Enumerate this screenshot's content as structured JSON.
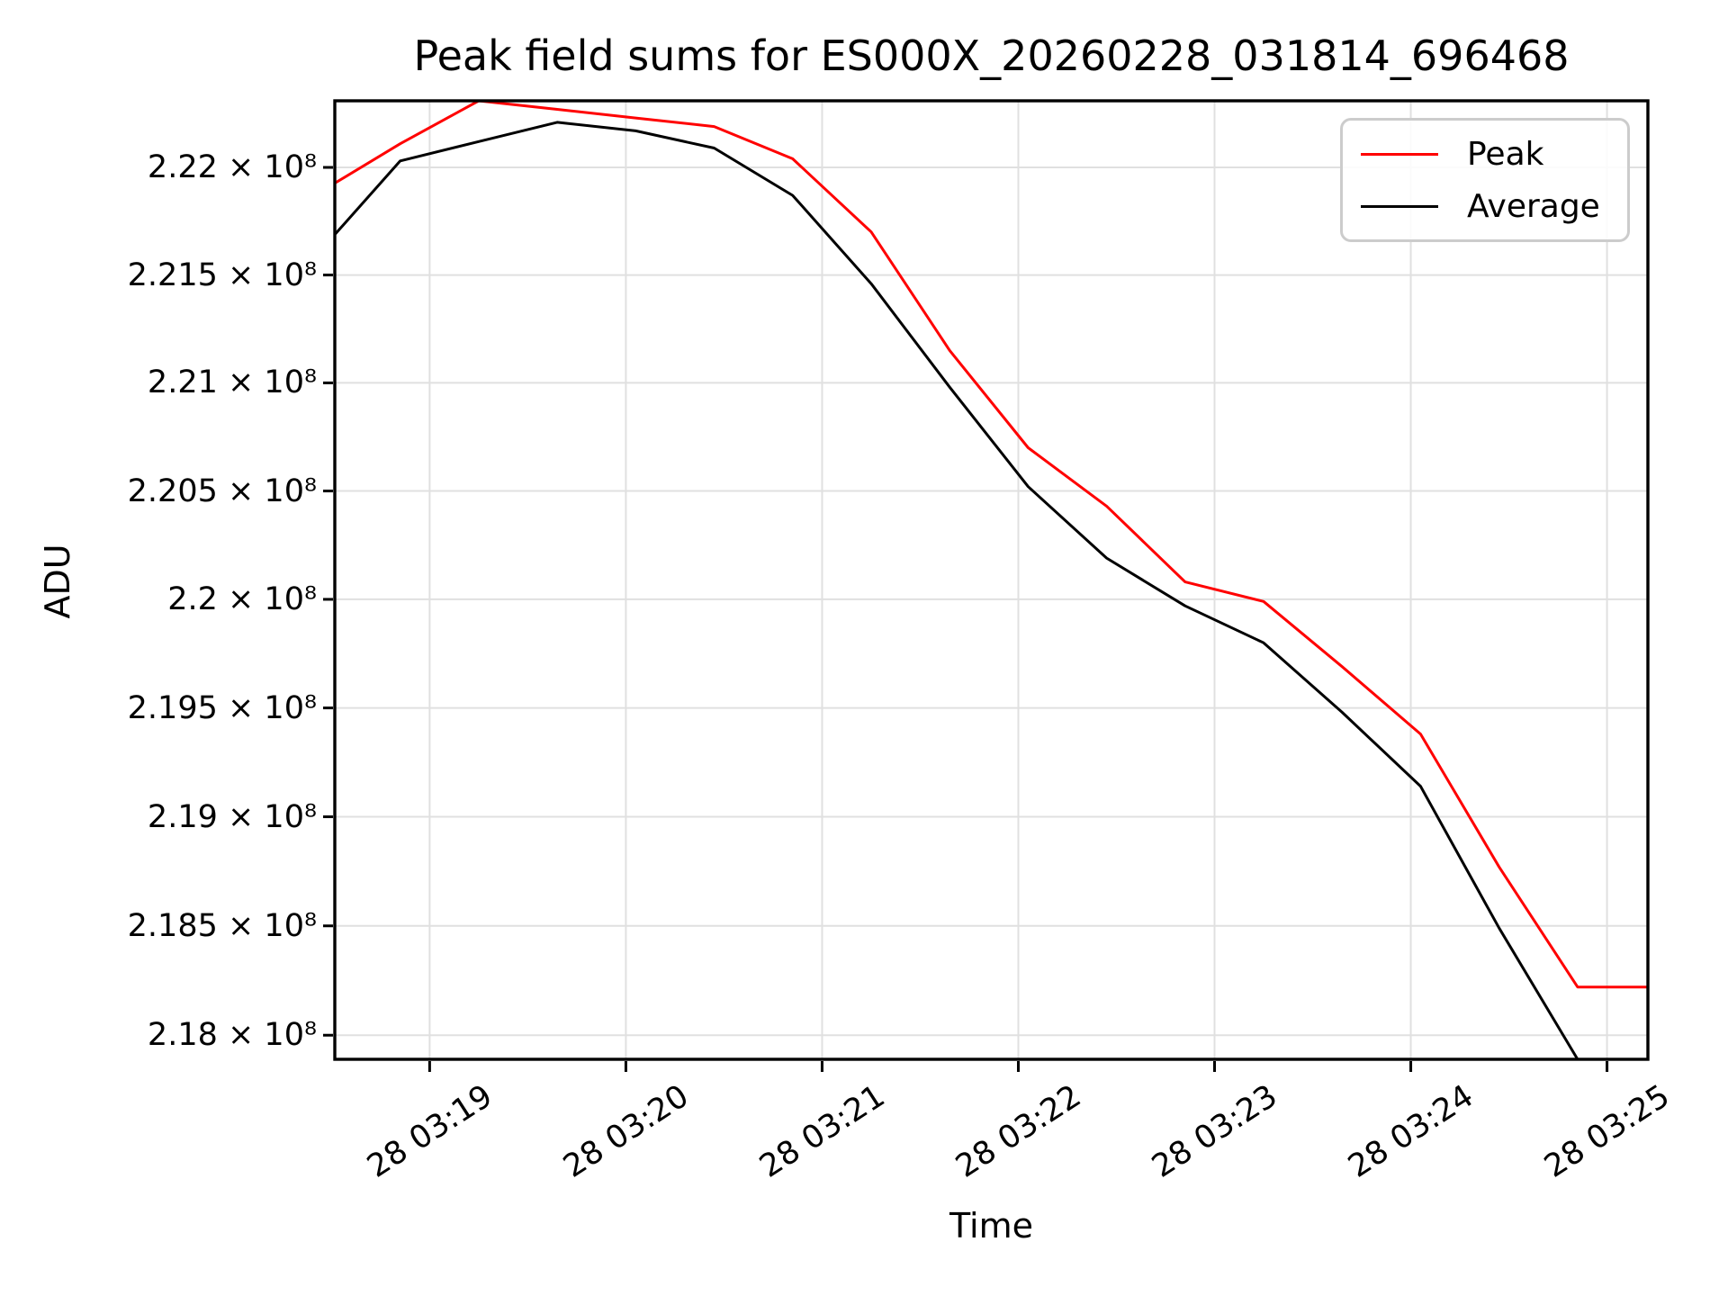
{
  "figure": {
    "background": "#ffffff",
    "spine_color": "#000000",
    "grid_color": "#e0e0e0",
    "legend_border_color": "#cccccc"
  },
  "chart_data": {
    "type": "line",
    "title": "Peak field sums for ES000X_20260228_031814_696468",
    "xlabel": "Time",
    "ylabel": "ADU",
    "y_scale": "log",
    "value_unit": "x 10^8 ADU",
    "x_unit": "seconds after 28 03:18:00",
    "x": [
      27,
      51,
      75,
      99,
      123,
      147,
      171,
      195,
      219,
      243,
      267,
      291,
      315,
      339,
      363,
      387,
      411,
      435
    ],
    "x_times": [
      "03:18:27",
      "03:18:51",
      "03:19:15",
      "03:19:39",
      "03:20:03",
      "03:20:27",
      "03:20:51",
      "03:21:15",
      "03:21:39",
      "03:22:03",
      "03:22:27",
      "03:22:51",
      "03:23:15",
      "03:23:39",
      "03:24:03",
      "03:24:27",
      "03:24:51",
      "03:25:15"
    ],
    "series": [
      {
        "name": "Peak",
        "color": "#ff0000",
        "values": [
          2.2189,
          2.2211,
          2.2231,
          2.2227,
          2.2223,
          2.2219,
          2.2204,
          2.217,
          2.2115,
          2.207,
          2.2043,
          2.2008,
          2.1999,
          2.1969,
          2.1938,
          2.1877,
          2.1822,
          2.1822
        ]
      },
      {
        "name": "Average",
        "color": "#000000",
        "values": [
          2.2162,
          2.2203,
          2.2212,
          2.2221,
          2.2217,
          2.2209,
          2.2187,
          2.2146,
          2.2098,
          2.2052,
          2.2019,
          2.1997,
          2.198,
          2.1948,
          2.1914,
          2.1849,
          2.1789,
          2.172
        ]
      }
    ],
    "xlim": [
      31,
      432.5
    ],
    "ylim": [
      2.1789,
      2.2231
    ],
    "grid": true,
    "legend_position": "upper right",
    "x_ticks": [
      {
        "value": 60,
        "label": "28 03:19"
      },
      {
        "value": 120,
        "label": "28 03:20"
      },
      {
        "value": 180,
        "label": "28 03:21"
      },
      {
        "value": 240,
        "label": "28 03:22"
      },
      {
        "value": 300,
        "label": "28 03:23"
      },
      {
        "value": 360,
        "label": "28 03:24"
      },
      {
        "value": 420,
        "label": "28 03:25"
      }
    ],
    "y_ticks": [
      {
        "value": 2.22,
        "label": "2.22 × 10⁸"
      },
      {
        "value": 2.215,
        "label": "2.215 × 10⁸"
      },
      {
        "value": 2.21,
        "label": "2.21 × 10⁸"
      },
      {
        "value": 2.205,
        "label": "2.205 × 10⁸"
      },
      {
        "value": 2.2,
        "label": "2.2 × 10⁸"
      },
      {
        "value": 2.195,
        "label": "2.195 × 10⁸"
      },
      {
        "value": 2.19,
        "label": "2.19 × 10⁸"
      },
      {
        "value": 2.185,
        "label": "2.185 × 10⁸"
      },
      {
        "value": 2.18,
        "label": "2.18 × 10⁸"
      }
    ]
  },
  "legend": {
    "entries": [
      {
        "label": "Peak",
        "color": "#ff0000"
      },
      {
        "label": "Average",
        "color": "#000000"
      }
    ]
  }
}
